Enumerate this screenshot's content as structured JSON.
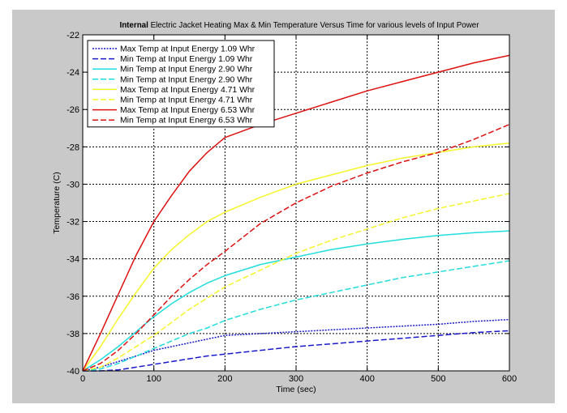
{
  "chart_data": {
    "type": "line",
    "title_bold": "Internal",
    "title_rest": " Electric Jacket Heating Max & Min Temperature Versus Time for various levels of Input Power",
    "xlabel": "Time (sec)",
    "ylabel": "Temperature (C)",
    "xlim": [
      0,
      600
    ],
    "ylim": [
      -40,
      -22
    ],
    "x_ticks": [
      0,
      100,
      200,
      300,
      400,
      500,
      600
    ],
    "y_ticks": [
      -40,
      -38,
      -36,
      -34,
      -32,
      -30,
      -28,
      -26,
      -24,
      -22
    ],
    "grid": true,
    "legend_position": "top-left",
    "x": [
      0,
      25,
      50,
      75,
      100,
      125,
      150,
      175,
      200,
      250,
      300,
      350,
      400,
      450,
      500,
      550,
      600
    ],
    "series": [
      {
        "name": "Max Temp at Input Energy 1.09 Whr",
        "color": "#1a1acc",
        "dash": "dotted",
        "values": [
          -40,
          -39.8,
          -39.5,
          -39.2,
          -38.9,
          -38.7,
          -38.5,
          -38.3,
          -38.1,
          -38.0,
          -37.9,
          -37.8,
          -37.7,
          -37.6,
          -37.5,
          -37.35,
          -37.25
        ]
      },
      {
        "name": "Min Temp at Input Energy 1.09 Whr",
        "color": "#1a1acc",
        "dash": "dashed",
        "values": [
          -40,
          -40,
          -39.95,
          -39.8,
          -39.65,
          -39.5,
          -39.35,
          -39.2,
          -39.1,
          -38.9,
          -38.7,
          -38.55,
          -38.4,
          -38.25,
          -38.1,
          -37.95,
          -37.85
        ]
      },
      {
        "name": "Min Temp at Input Energy 2.90 Whr",
        "color": "#22dddd",
        "dash": "solid",
        "values": [
          -40,
          -39.4,
          -38.7,
          -37.9,
          -37.1,
          -36.4,
          -35.8,
          -35.3,
          -34.9,
          -34.3,
          -33.9,
          -33.5,
          -33.2,
          -32.95,
          -32.75,
          -32.6,
          -32.5
        ]
      },
      {
        "name": "Min Temp at Input Energy 2.90 Whr",
        "color": "#22dddd",
        "dash": "dashed",
        "values": [
          -40,
          -39.9,
          -39.6,
          -39.2,
          -38.8,
          -38.4,
          -38.0,
          -37.7,
          -37.3,
          -36.7,
          -36.2,
          -35.8,
          -35.4,
          -35.0,
          -34.7,
          -34.4,
          -34.1
        ]
      },
      {
        "name": "Max Temp at Input Energy  4.71 Whr",
        "color": "#f5f52a",
        "dash": "solid",
        "values": [
          -40,
          -38.7,
          -37.2,
          -35.8,
          -34.5,
          -33.5,
          -32.7,
          -32.0,
          -31.5,
          -30.7,
          -30.0,
          -29.5,
          -29.0,
          -28.6,
          -28.3,
          -28.0,
          -27.8
        ]
      },
      {
        "name": "Min Temp at Input Energy  4.71 Whr",
        "color": "#f5f52a",
        "dash": "dashed",
        "values": [
          -40,
          -39.8,
          -39.3,
          -38.7,
          -38.1,
          -37.4,
          -36.7,
          -36.1,
          -35.5,
          -34.6,
          -33.7,
          -33.0,
          -32.4,
          -31.8,
          -31.3,
          -30.9,
          -30.5
        ]
      },
      {
        "name": "Max Temp at Input Energy  6.53 Whr",
        "color": "#dd1111",
        "dash": "solid",
        "values": [
          -40,
          -38.0,
          -35.9,
          -33.8,
          -32.0,
          -30.6,
          -29.3,
          -28.3,
          -27.5,
          -26.8,
          -26.2,
          -25.6,
          -25.0,
          -24.5,
          -24.0,
          -23.5,
          -23.1
        ]
      },
      {
        "name": "Min Temp at Input Energy  6.53 Whr",
        "color": "#dd1111",
        "dash": "dashed",
        "values": [
          -40,
          -39.6,
          -38.9,
          -38.0,
          -37.0,
          -36.0,
          -35.1,
          -34.3,
          -33.6,
          -32.1,
          -31.0,
          -30.1,
          -29.4,
          -28.8,
          -28.3,
          -27.6,
          -26.8
        ]
      }
    ]
  }
}
